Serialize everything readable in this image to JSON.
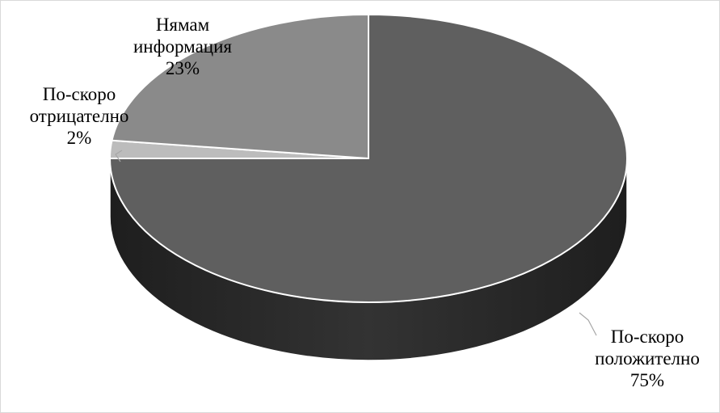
{
  "chart_data": {
    "type": "pie",
    "style": "3d",
    "slices": [
      {
        "name": "По-скоро положително",
        "value": 75,
        "percent_label": "75%",
        "color": "#5f5f5f",
        "side_color": "#333333"
      },
      {
        "name": "По-скоро отрицателно",
        "value": 2,
        "percent_label": "2%",
        "color": "#bcbcbc",
        "side_color": "#8e8e8e"
      },
      {
        "name": "Нямам информация",
        "value": 23,
        "percent_label": "23%",
        "color": "#8a8a8a",
        "side_color": "#5a5a5a"
      }
    ],
    "labels": {
      "positive": {
        "line1": "По-скоро",
        "line2": "положително",
        "line3": "75%"
      },
      "negative": {
        "line1": "По-скоро",
        "line2": "отрицателно",
        "line3": "2%"
      },
      "noinfo": {
        "line1": "Нямам",
        "line2": "информация",
        "line3": "23%"
      }
    },
    "legend": "none"
  }
}
